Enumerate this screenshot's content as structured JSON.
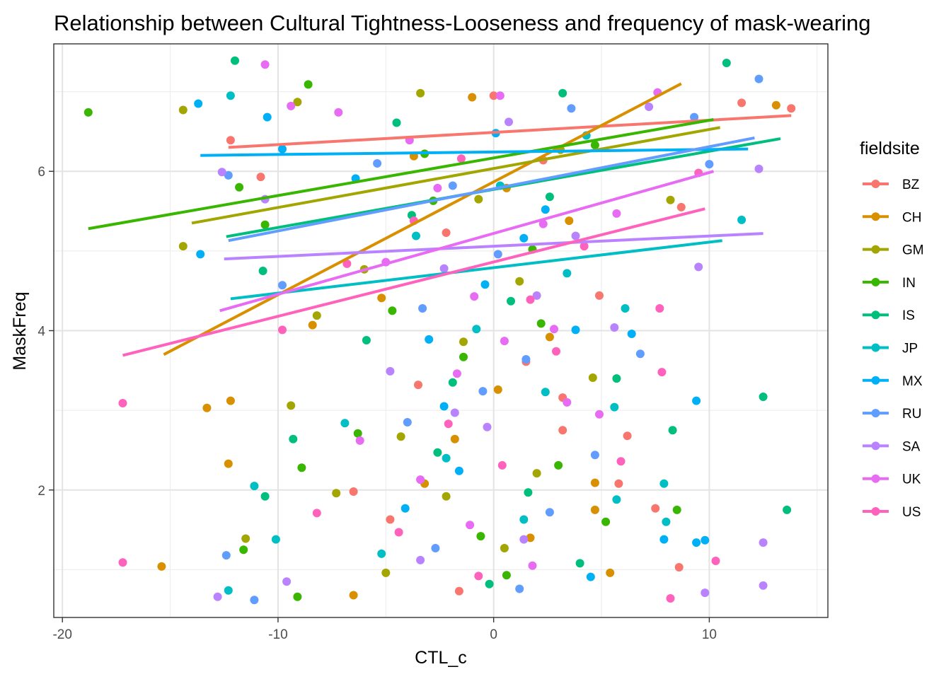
{
  "chart_data": {
    "type": "scatter",
    "title": "Relationship between Cultural Tightness-Looseness and frequency of mask-wearing",
    "xlabel": "CTL_c",
    "ylabel": "MaskFreq",
    "xlim": [
      -20.4,
      15.5
    ],
    "ylim": [
      0.4,
      7.6
    ],
    "x_ticks": [
      -20,
      -10,
      0,
      10
    ],
    "x_tick_labels": [
      "-20",
      "-10",
      "0",
      "10"
    ],
    "y_ticks": [
      2,
      4,
      6
    ],
    "y_tick_labels": [
      "2",
      "4",
      "6"
    ],
    "grid": true,
    "legend": {
      "title": "fieldsite",
      "position": "right"
    },
    "point_style": "jittered points around integer MaskFreq levels 1-7",
    "series": [
      {
        "name": "BZ",
        "color": "#F8766D",
        "fit": [
          [
            -12.3,
            6.3
          ],
          [
            13.8,
            6.7
          ]
        ],
        "points": [
          [
            13.8,
            6.79
          ],
          [
            11.5,
            6.86
          ],
          [
            -12.2,
            6.39
          ],
          [
            -10.8,
            5.93
          ],
          [
            8.7,
            5.55
          ],
          [
            7.5,
            1.77
          ],
          [
            8.6,
            1.03
          ],
          [
            5.8,
            2.08
          ],
          [
            6.2,
            2.68
          ],
          [
            -4.8,
            1.63
          ],
          [
            -3.5,
            3.32
          ],
          [
            3.2,
            2.75
          ],
          [
            2.3,
            6.14
          ],
          [
            0.0,
            6.95
          ],
          [
            -2.2,
            5.23
          ],
          [
            4.9,
            4.44
          ],
          [
            1.5,
            3.61
          ],
          [
            -6.5,
            1.98
          ],
          [
            -1.6,
            0.73
          ],
          [
            3.2,
            3.16
          ]
        ]
      },
      {
        "name": "CH",
        "color": "#D89000",
        "fit": [
          [
            -15.3,
            3.7
          ],
          [
            8.7,
            7.1
          ]
        ],
        "points": [
          [
            -15.4,
            1.04
          ],
          [
            -13.3,
            3.03
          ],
          [
            -12.2,
            3.12
          ],
          [
            -12.3,
            2.33
          ],
          [
            -6.5,
            0.68
          ],
          [
            -3.2,
            2.08
          ],
          [
            4.7,
            1.75
          ],
          [
            4.7,
            2.09
          ],
          [
            13.1,
            6.83
          ],
          [
            -8.4,
            4.07
          ],
          [
            -1.8,
            2.64
          ],
          [
            2.6,
            3.92
          ],
          [
            0.6,
            5.79
          ],
          [
            1.7,
            1.4
          ],
          [
            -5.2,
            4.41
          ],
          [
            3.5,
            5.38
          ],
          [
            -1.0,
            6.93
          ],
          [
            5.4,
            0.96
          ],
          [
            0.2,
            3.26
          ],
          [
            -3.7,
            6.19
          ]
        ]
      },
      {
        "name": "GM",
        "color": "#A3A500",
        "fit": [
          [
            -14.0,
            5.35
          ],
          [
            10.5,
            6.55
          ]
        ],
        "points": [
          [
            -14.4,
            6.77
          ],
          [
            -14.4,
            5.06
          ],
          [
            -11.5,
            1.39
          ],
          [
            -7.3,
            1.96
          ],
          [
            -8.2,
            4.19
          ],
          [
            -9.4,
            3.06
          ],
          [
            8.2,
            5.64
          ],
          [
            -6.0,
            4.77
          ],
          [
            -3.4,
            6.98
          ],
          [
            2.0,
            2.21
          ],
          [
            -0.7,
            5.65
          ],
          [
            4.6,
            3.41
          ],
          [
            -2.2,
            1.92
          ],
          [
            3.1,
            6.27
          ],
          [
            -5.0,
            0.96
          ],
          [
            1.2,
            4.62
          ],
          [
            -1.4,
            3.86
          ],
          [
            -4.3,
            2.67
          ],
          [
            0.5,
            1.27
          ],
          [
            -9.1,
            6.87
          ]
        ]
      },
      {
        "name": "IN",
        "color": "#39B600",
        "fit": [
          [
            -18.8,
            5.28
          ],
          [
            10.2,
            6.65
          ]
        ],
        "points": [
          [
            -18.8,
            6.74
          ],
          [
            -9.1,
            0.66
          ],
          [
            -8.9,
            2.28
          ],
          [
            -11.6,
            1.25
          ],
          [
            -10.6,
            5.33
          ],
          [
            -11.8,
            5.8
          ],
          [
            8.5,
            1.75
          ],
          [
            -4.7,
            4.25
          ],
          [
            -1.4,
            3.67
          ],
          [
            3.0,
            2.31
          ],
          [
            -3.2,
            6.22
          ],
          [
            1.8,
            5.02
          ],
          [
            -0.6,
            1.42
          ],
          [
            2.2,
            4.09
          ],
          [
            -6.3,
            2.71
          ],
          [
            4.7,
            6.33
          ],
          [
            0.6,
            0.93
          ],
          [
            -2.8,
            5.63
          ],
          [
            5.2,
            1.6
          ],
          [
            -8.6,
            7.09
          ]
        ]
      },
      {
        "name": "IS",
        "color": "#00BF7D",
        "fit": [
          [
            -12.4,
            5.18
          ],
          [
            13.3,
            6.41
          ]
        ],
        "points": [
          [
            13.6,
            1.75
          ],
          [
            12.5,
            3.17
          ],
          [
            -10.6,
            1.92
          ],
          [
            -9.3,
            2.64
          ],
          [
            -10.7,
            4.75
          ],
          [
            8.3,
            2.75
          ],
          [
            -12.0,
            7.39
          ],
          [
            -5.9,
            3.88
          ],
          [
            0.8,
            4.37
          ],
          [
            -2.6,
            2.47
          ],
          [
            3.2,
            6.98
          ],
          [
            1.6,
            1.97
          ],
          [
            -3.8,
            5.45
          ],
          [
            5.7,
            3.4
          ],
          [
            -0.2,
            0.82
          ],
          [
            2.6,
            5.68
          ],
          [
            -1.9,
            3.35
          ],
          [
            4.0,
            1.08
          ],
          [
            -4.5,
            6.61
          ],
          [
            10.8,
            7.36
          ]
        ]
      },
      {
        "name": "JP",
        "color": "#00BFC4",
        "fit": [
          [
            -12.2,
            4.4
          ],
          [
            10.6,
            5.13
          ]
        ],
        "points": [
          [
            -12.3,
            0.74
          ],
          [
            -11.1,
            2.05
          ],
          [
            -10.1,
            1.38
          ],
          [
            -6.9,
            2.84
          ],
          [
            5.7,
            1.88
          ],
          [
            6.1,
            4.28
          ],
          [
            7.9,
            2.08
          ],
          [
            8.0,
            1.6
          ],
          [
            11.5,
            5.39
          ],
          [
            -0.8,
            4.02
          ],
          [
            2.4,
            3.23
          ],
          [
            -3.6,
            5.19
          ],
          [
            1.4,
            1.63
          ],
          [
            4.3,
            6.45
          ],
          [
            -2.2,
            2.4
          ],
          [
            0.3,
            5.82
          ],
          [
            3.4,
            4.72
          ],
          [
            -5.2,
            1.2
          ],
          [
            5.6,
            3.04
          ],
          [
            -12.2,
            6.95
          ]
        ]
      },
      {
        "name": "MX",
        "color": "#00B0F6",
        "fit": [
          [
            -13.6,
            6.2
          ],
          [
            11.8,
            6.28
          ]
        ],
        "points": [
          [
            -13.7,
            6.85
          ],
          [
            -13.6,
            4.96
          ],
          [
            9.4,
            3.12
          ],
          [
            9.8,
            1.37
          ],
          [
            9.4,
            1.34
          ],
          [
            7.9,
            1.38
          ],
          [
            -9.8,
            6.28
          ],
          [
            -10.5,
            6.68
          ],
          [
            -2.3,
            3.05
          ],
          [
            1.4,
            5.16
          ],
          [
            -4.1,
            1.77
          ],
          [
            3.8,
            4.01
          ],
          [
            0.1,
            6.48
          ],
          [
            -1.6,
            2.24
          ],
          [
            2.4,
            5.52
          ],
          [
            -3.0,
            3.89
          ],
          [
            4.5,
            0.91
          ],
          [
            -0.4,
            4.58
          ],
          [
            6.4,
            3.96
          ],
          [
            -6.4,
            5.91
          ]
        ]
      },
      {
        "name": "RU",
        "color": "#619CFF",
        "fit": [
          [
            -12.3,
            5.13
          ],
          [
            12.1,
            6.42
          ]
        ],
        "points": [
          [
            -11.1,
            0.62
          ],
          [
            -12.4,
            1.18
          ],
          [
            12.3,
            7.16
          ],
          [
            10.0,
            6.09
          ],
          [
            9.3,
            6.68
          ],
          [
            -12.3,
            5.95
          ],
          [
            -9.8,
            4.57
          ],
          [
            -4.0,
            2.85
          ],
          [
            1.5,
            3.64
          ],
          [
            -1.9,
            5.82
          ],
          [
            2.6,
            1.72
          ],
          [
            -0.5,
            3.24
          ],
          [
            3.6,
            6.79
          ],
          [
            -2.7,
            1.27
          ],
          [
            0.2,
            4.96
          ],
          [
            4.7,
            2.44
          ],
          [
            -5.4,
            6.1
          ],
          [
            1.2,
            0.76
          ],
          [
            -3.3,
            4.28
          ],
          [
            6.8,
            3.71
          ]
        ]
      },
      {
        "name": "SA",
        "color": "#B983FF",
        "fit": [
          [
            -12.5,
            4.9
          ],
          [
            12.5,
            5.22
          ]
        ],
        "points": [
          [
            -12.8,
            0.66
          ],
          [
            -12.6,
            5.99
          ],
          [
            -10.6,
            5.65
          ],
          [
            -9.6,
            0.85
          ],
          [
            9.8,
            0.71
          ],
          [
            12.5,
            1.34
          ],
          [
            12.5,
            0.8
          ],
          [
            12.3,
            6.03
          ],
          [
            9.5,
            4.8
          ],
          [
            -1.8,
            2.97
          ],
          [
            2.0,
            4.44
          ],
          [
            -3.4,
            1.12
          ],
          [
            0.7,
            6.62
          ],
          [
            -0.3,
            2.79
          ],
          [
            3.8,
            5.19
          ],
          [
            -4.8,
            3.49
          ],
          [
            1.4,
            1.38
          ],
          [
            5.6,
            4.04
          ],
          [
            -2.3,
            4.78
          ],
          [
            7.2,
            6.81
          ]
        ]
      },
      {
        "name": "UK",
        "color": "#E76BF3",
        "fit": [
          [
            -12.7,
            4.25
          ],
          [
            10.2,
            6.0
          ]
        ],
        "points": [
          [
            -10.6,
            7.34
          ],
          [
            -9.4,
            6.82
          ],
          [
            -7.2,
            6.74
          ],
          [
            -1.7,
            3.46
          ],
          [
            2.3,
            5.34
          ],
          [
            -3.4,
            2.13
          ],
          [
            0.3,
            6.95
          ],
          [
            -0.9,
            4.43
          ],
          [
            3.4,
            3.1
          ],
          [
            -2.6,
            5.79
          ],
          [
            1.8,
            1.05
          ],
          [
            -5.0,
            4.86
          ],
          [
            4.9,
            2.95
          ],
          [
            0.5,
            3.87
          ],
          [
            -3.9,
            6.39
          ],
          [
            2.8,
            4.02
          ],
          [
            -1.1,
            1.56
          ],
          [
            5.7,
            5.47
          ],
          [
            -6.2,
            2.62
          ],
          [
            7.6,
            6.99
          ]
        ]
      },
      {
        "name": "US",
        "color": "#FF62BC",
        "fit": [
          [
            -17.2,
            3.69
          ],
          [
            9.8,
            5.53
          ]
        ],
        "points": [
          [
            -17.2,
            3.09
          ],
          [
            -17.2,
            1.09
          ],
          [
            -8.2,
            1.71
          ],
          [
            -9.8,
            4.01
          ],
          [
            7.7,
            4.28
          ],
          [
            7.8,
            3.48
          ],
          [
            8.2,
            0.64
          ],
          [
            10.3,
            1.11
          ],
          [
            9.5,
            5.98
          ],
          [
            -2.1,
            2.83
          ],
          [
            1.7,
            4.39
          ],
          [
            -3.7,
            5.38
          ],
          [
            0.4,
            2.31
          ],
          [
            -1.5,
            6.16
          ],
          [
            2.9,
            3.74
          ],
          [
            -4.4,
            1.47
          ],
          [
            4.2,
            5.06
          ],
          [
            -0.7,
            0.92
          ],
          [
            5.9,
            2.36
          ],
          [
            -6.8,
            4.84
          ]
        ]
      }
    ]
  }
}
